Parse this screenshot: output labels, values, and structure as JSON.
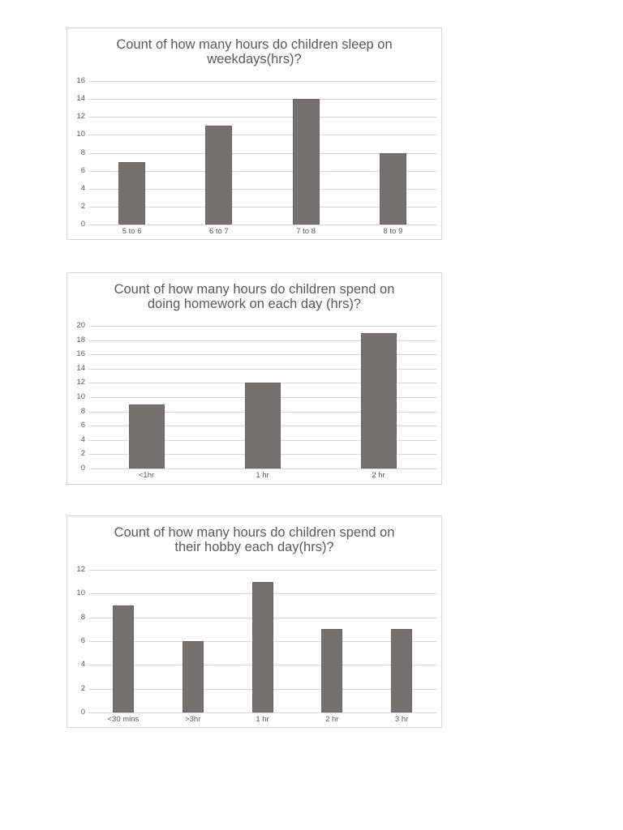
{
  "chart_data": [
    {
      "type": "bar",
      "title": "Count of how many hours do children sleep on weekdays(hrs)?",
      "title_lines": [
        "Count of how many hours do children sleep on",
        "weekdays(hrs)?"
      ],
      "categories": [
        "5 to 6",
        "6 to 7",
        "7 to 8",
        "8 to 9"
      ],
      "values": [
        7,
        11,
        14,
        8
      ],
      "xlabel": "",
      "ylabel": "",
      "ylim": [
        0,
        16
      ],
      "yticks": [
        0,
        2,
        4,
        6,
        8,
        10,
        12,
        14,
        16
      ],
      "grid": true,
      "legend": "none",
      "bar_color": "#767171"
    },
    {
      "type": "bar",
      "title": "Count of how many hours do children spend on doing homework on each day (hrs)?",
      "title_lines": [
        "Count of how many hours do children spend on",
        "doing homework on each day (hrs)?"
      ],
      "categories": [
        "<1hr",
        "1 hr",
        "2 hr"
      ],
      "values": [
        9,
        12,
        19
      ],
      "xlabel": "",
      "ylabel": "",
      "ylim": [
        0,
        20
      ],
      "yticks": [
        0,
        2,
        4,
        6,
        8,
        10,
        12,
        14,
        16,
        18,
        20
      ],
      "grid": true,
      "legend": "none",
      "bar_color": "#767171"
    },
    {
      "type": "bar",
      "title": "Count of how many hours do children spend on their hobby each day(hrs)?",
      "title_lines": [
        "Count of how many hours do children spend on",
        "their hobby each day(hrs)?"
      ],
      "categories": [
        "<30 mins",
        ">3hr",
        "1 hr",
        "2 hr",
        "3 hr"
      ],
      "values": [
        9,
        6,
        11,
        7,
        7
      ],
      "xlabel": "",
      "ylabel": "",
      "ylim": [
        0,
        12
      ],
      "yticks": [
        0,
        2,
        4,
        6,
        8,
        10,
        12
      ],
      "grid": true,
      "legend": "none",
      "bar_color": "#767171"
    }
  ]
}
